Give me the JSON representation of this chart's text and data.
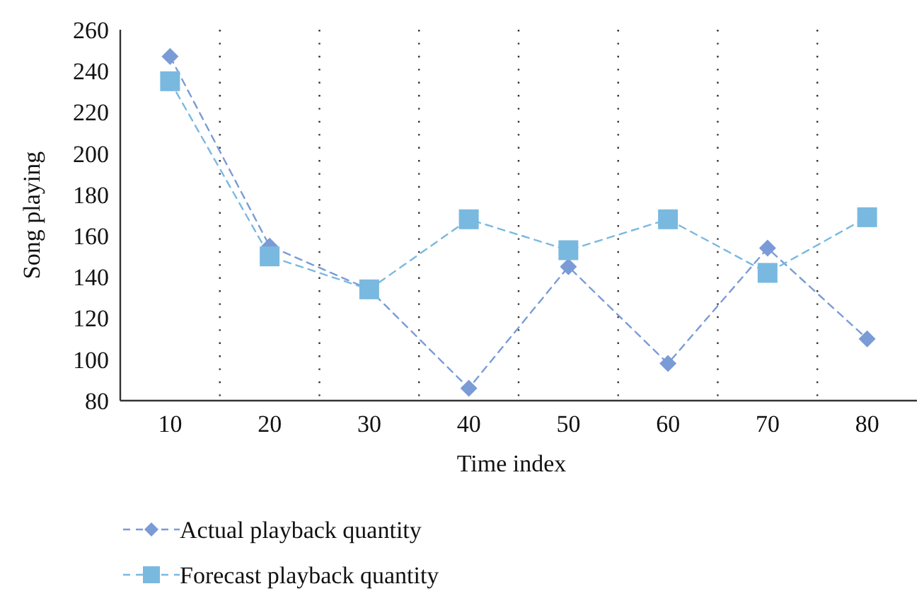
{
  "chart_data": {
    "type": "line",
    "xlabel": "Time index",
    "ylabel": "Song playing",
    "categories": [
      "10",
      "20",
      "30",
      "40",
      "50",
      "60",
      "70",
      "80"
    ],
    "series": [
      {
        "name": "Actual playback quantity",
        "color": "#7b9bd6",
        "marker": "diamond",
        "values": [
          247,
          155,
          134,
          86,
          145,
          98,
          154,
          110
        ]
      },
      {
        "name": "Forecast playback quantity",
        "color": "#79b9e0",
        "marker": "square",
        "values": [
          235,
          150,
          134,
          168,
          153,
          168,
          142,
          169
        ]
      }
    ],
    "ylim": [
      80,
      260
    ],
    "yticks": [
      80,
      100,
      120,
      140,
      160,
      180,
      200,
      220,
      240,
      260
    ],
    "grid": "x",
    "legend": "bottom",
    "line_style": "dashed"
  }
}
